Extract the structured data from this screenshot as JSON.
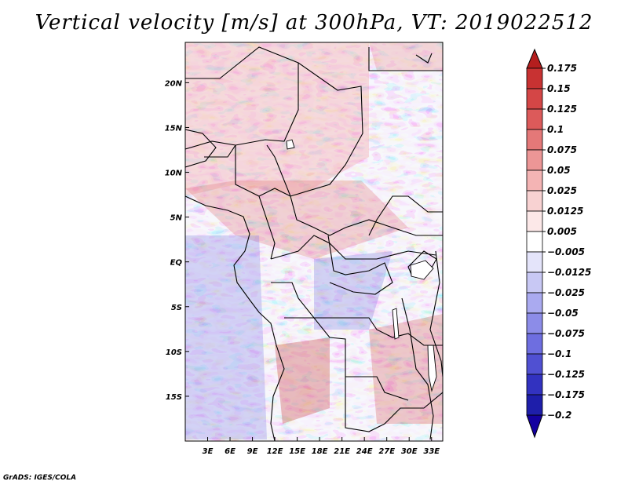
{
  "title": "Vertical velocity [m/s] at 300hPa, VT: 2019022512",
  "footer": "GrADS: IGES/COLA",
  "map": {
    "lon_labels": [
      "3E",
      "6E",
      "9E",
      "12E",
      "15E",
      "18E",
      "21E",
      "24E",
      "27E",
      "30E",
      "33E"
    ],
    "lat_labels": [
      "20N",
      "15N",
      "10N",
      "5N",
      "EQ",
      "5S",
      "10S",
      "15S"
    ],
    "lon_values": [
      3,
      6,
      9,
      12,
      15,
      18,
      21,
      24,
      27,
      30,
      33
    ],
    "lat_values": [
      20,
      15,
      10,
      5,
      0,
      -5,
      -10,
      -15
    ],
    "lon_range": [
      0,
      34.5
    ],
    "lat_range": [
      -20,
      24.5
    ]
  },
  "colorbar": {
    "labels": [
      "0.175",
      "0.15",
      "0.125",
      "0.1",
      "0.075",
      "0.05",
      "0.025",
      "0.0125",
      "0.005",
      "−0.005",
      "−0.0125",
      "−0.025",
      "−0.05",
      "−0.075",
      "−0.1",
      "−0.125",
      "−0.175",
      "−0.2"
    ],
    "colors": [
      "#b41e1e",
      "#c83232",
      "#d44646",
      "#dc5a5a",
      "#e47878",
      "#ec9696",
      "#f4b4b4",
      "#f8d2d2",
      "#fce8e8",
      "#ffffff",
      "#e4e4fa",
      "#c8c8f4",
      "#aaaaf0",
      "#8c8ce8",
      "#6e6ee0",
      "#5050d2",
      "#3232c0",
      "#1e1eaa",
      "#1400a0"
    ]
  }
}
